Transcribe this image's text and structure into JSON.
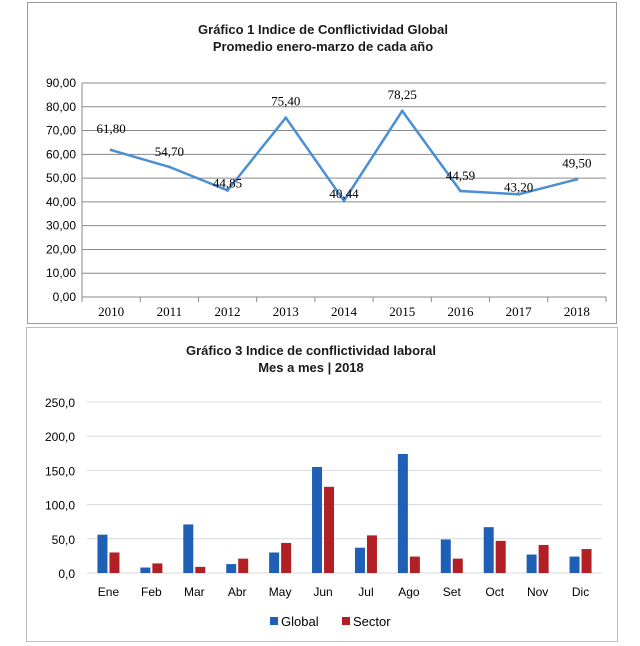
{
  "chart_data": [
    {
      "type": "line",
      "title": "Gráfico 1 Indice de Conflictividad Global",
      "subtitle": "Promedio enero-marzo de cada año",
      "categories": [
        "2010",
        "2011",
        "2012",
        "2013",
        "2014",
        "2015",
        "2016",
        "2017",
        "2018"
      ],
      "values": [
        61.8,
        54.7,
        44.85,
        75.4,
        40.44,
        78.25,
        44.59,
        43.2,
        49.5
      ],
      "data_labels": [
        "61,80",
        "54,70",
        "44,85",
        "75,40",
        "40,44",
        "78,25",
        "44,59",
        "43,20",
        "49,50"
      ],
      "yticks": [
        "0,00",
        "10,00",
        "20,00",
        "30,00",
        "40,00",
        "50,00",
        "60,00",
        "70,00",
        "80,00",
        "90,00"
      ],
      "ylim": [
        0,
        90
      ],
      "grid": true,
      "color": "#4a8fd4"
    },
    {
      "type": "bar",
      "title": "Gráfico 3 Indice de conflictividad laboral",
      "subtitle": "Mes a mes | 2018",
      "categories": [
        "Ene",
        "Feb",
        "Mar",
        "Abr",
        "May",
        "Jun",
        "Jul",
        "Ago",
        "Set",
        "Oct",
        "Nov",
        "Dic"
      ],
      "series": [
        {
          "name": "Global",
          "color": "#1f5fb5",
          "values": [
            56,
            8,
            71,
            13,
            30,
            155,
            37,
            174,
            49,
            67,
            27,
            24
          ]
        },
        {
          "name": "Sector",
          "color": "#b21f24",
          "values": [
            30,
            14,
            9,
            21,
            44,
            126,
            55,
            24,
            21,
            47,
            41,
            35
          ]
        }
      ],
      "yticks": [
        "0,0",
        "50,0",
        "100,0",
        "150,0",
        "200,0",
        "250,0"
      ],
      "ylim": [
        0,
        250
      ],
      "grid": true,
      "legend": "bottom"
    }
  ]
}
